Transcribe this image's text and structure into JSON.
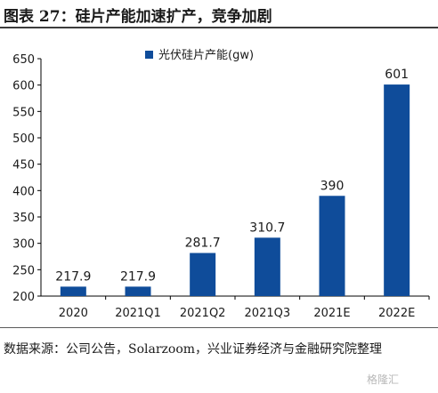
{
  "figure": {
    "title": "图表 27：硅片产能加速扩产，竞争加剧",
    "source": "数据来源：公司公告，Solarzoom，兴业证券经济与金融研究院整理",
    "watermark": "格隆汇"
  },
  "colors": {
    "bar": "#0f4c9a",
    "axis": "#000000",
    "text": "#1a1a1a",
    "rule": "#3c3c3c"
  },
  "chart_data": {
    "type": "bar",
    "categories": [
      "2020",
      "2021Q1",
      "2021Q2",
      "2021Q3",
      "2021E",
      "2022E"
    ],
    "series": [
      {
        "name": "光伏硅片产能(gw)",
        "values": [
          217.9,
          217.9,
          281.7,
          310.7,
          390,
          601
        ]
      }
    ],
    "data_labels": [
      "217.9",
      "217.9",
      "281.7",
      "310.7",
      "390",
      "601"
    ],
    "title": "",
    "xlabel": "",
    "ylabel": "",
    "ylim": [
      200,
      650
    ],
    "yticks": [
      200,
      250,
      300,
      350,
      400,
      450,
      500,
      550,
      600,
      650
    ],
    "grid": false,
    "legend": "top-center"
  }
}
